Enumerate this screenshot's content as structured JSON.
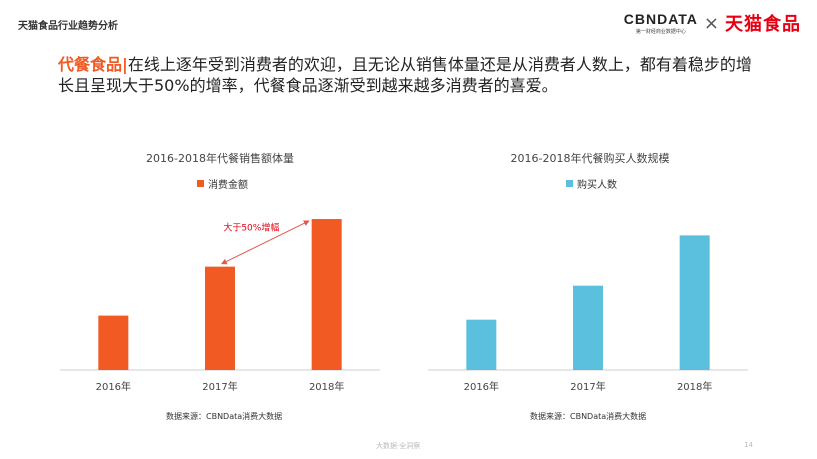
{
  "header": {
    "section_title": "天猫食品行业趋势分析",
    "logo_cbn": "CBNDATA",
    "logo_cbn_sub": "第一财经商业数据中心",
    "logo_times": "×",
    "logo_tmall": "天猫食品"
  },
  "headline": {
    "accent": "代餐食品|",
    "text": "在线上逐年受到消费者的欢迎，且无论从销售体量还是从消费者人数上，都有着稳步的增长且呈现大于50%的增率，代餐食品逐渐受到越来越多消费者的喜爱。"
  },
  "chart_data": [
    {
      "type": "bar",
      "title": "2016-2018年代餐销售额体量",
      "categories": [
        "2016年",
        "2017年",
        "2018年"
      ],
      "series": [
        {
          "name": "消费金额",
          "values": [
            40,
            76,
            111
          ],
          "color": "#f15a22"
        }
      ],
      "ylim": [
        0,
        125
      ],
      "annotation": "大于50%增幅",
      "annotation_color": "#e60012",
      "source": "数据来源：CBNData消费大数据"
    },
    {
      "type": "bar",
      "title": "2016-2018年代餐购买人数规模",
      "categories": [
        "2016年",
        "2017年",
        "2018年"
      ],
      "series": [
        {
          "name": "购买人数",
          "values": [
            37,
            62,
            99
          ],
          "color": "#5bc0de"
        }
      ],
      "ylim": [
        0,
        125
      ],
      "source": "数据来源：CBNData消费大数据"
    }
  ],
  "footer": {
    "brand": "大数据·全洞察",
    "page": "14"
  }
}
